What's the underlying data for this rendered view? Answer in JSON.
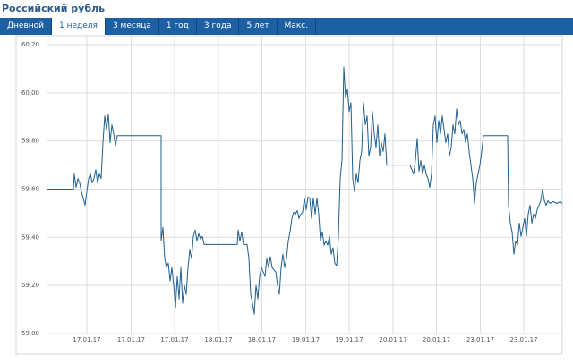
{
  "title": "Российский рубль",
  "tabs": [
    "Дневной",
    "1 неделя",
    "3 месяца",
    "1 год",
    "3 года",
    "5 лет",
    "Макс."
  ],
  "selected_tab": 1,
  "chart_data": {
    "type": "line",
    "grid": true,
    "xlim": [
      0,
      576
    ],
    "ylim": [
      59.0,
      60.2
    ],
    "xticks": [
      {
        "value": 45,
        "label": "17.01.17"
      },
      {
        "value": 94.5,
        "label": "17.01.17"
      },
      {
        "value": 143,
        "label": "17.01.17"
      },
      {
        "value": 192,
        "label": "18.01.17"
      },
      {
        "value": 240.5,
        "label": "18.01.17"
      },
      {
        "value": 289.5,
        "label": "19.01.17"
      },
      {
        "value": 338,
        "label": "19.01.17"
      },
      {
        "value": 387,
        "label": "20.01.17"
      },
      {
        "value": 435.5,
        "label": "20.01.17"
      },
      {
        "value": 484.5,
        "label": "23.01.17"
      },
      {
        "value": 533,
        "label": "23.01.17"
      }
    ],
    "yticks": [
      {
        "value": 60.2,
        "label": "60,20"
      },
      {
        "value": 60.0,
        "label": "60,00"
      },
      {
        "value": 59.8,
        "label": "59,80"
      },
      {
        "value": 59.6,
        "label": "59,60"
      },
      {
        "value": 59.4,
        "label": "59,40"
      },
      {
        "value": 59.2,
        "label": "59,20"
      },
      {
        "value": 59.0,
        "label": "59,00"
      }
    ],
    "x": [
      0,
      30,
      31,
      33,
      35,
      37,
      39,
      41,
      43,
      45,
      47,
      49,
      51,
      53,
      55,
      57,
      59,
      61,
      63,
      65,
      67,
      69,
      71,
      73,
      75,
      77,
      79,
      128,
      128,
      130,
      132,
      134,
      136,
      138,
      140,
      142,
      144,
      146,
      148,
      150,
      152,
      154,
      156,
      158,
      160,
      162,
      164,
      166,
      168,
      170,
      172,
      174,
      176,
      213,
      214,
      216,
      218,
      220,
      224,
      226,
      228,
      230,
      232,
      234,
      236,
      238,
      240,
      242,
      244,
      246,
      248,
      250,
      252,
      256,
      258,
      260,
      262,
      264,
      266,
      268,
      270,
      272,
      274,
      276,
      278,
      280,
      282,
      284,
      286,
      288,
      290,
      292,
      294,
      296,
      298,
      300,
      302,
      304,
      306,
      308,
      310,
      312,
      314,
      316,
      318,
      320,
      322,
      324,
      326,
      328,
      330,
      332,
      334,
      336,
      338,
      340,
      342,
      344,
      346,
      348,
      350,
      352,
      354,
      356,
      358,
      360,
      362,
      364,
      366,
      368,
      370,
      372,
      374,
      376,
      378,
      380,
      406,
      410,
      412,
      414,
      416,
      418,
      420,
      422,
      424,
      426,
      428,
      430,
      432,
      434,
      436,
      438,
      440,
      442,
      444,
      446,
      448,
      450,
      452,
      454,
      456,
      458,
      460,
      462,
      464,
      466,
      468,
      470,
      472,
      474,
      476,
      478,
      480,
      482,
      484,
      486,
      488,
      515,
      516,
      518,
      520,
      522,
      524,
      526,
      528,
      530,
      532,
      534,
      536,
      538,
      540,
      542,
      544,
      546,
      548,
      550,
      552,
      554,
      556,
      558,
      560,
      562,
      566,
      570,
      574,
      576
    ],
    "series": [
      {
        "color": "#1f5f8f",
        "values": [
          59.6,
          59.6,
          59.663,
          59.607,
          59.644,
          59.626,
          59.589,
          59.563,
          59.533,
          59.589,
          59.644,
          59.663,
          59.626,
          59.644,
          59.681,
          59.626,
          59.663,
          59.644,
          59.793,
          59.904,
          59.848,
          59.911,
          59.793,
          59.867,
          59.83,
          59.781,
          59.822,
          59.822,
          59.385,
          59.441,
          59.311,
          59.274,
          59.293,
          59.219,
          59.274,
          59.2,
          59.107,
          59.237,
          59.144,
          59.274,
          59.126,
          59.2,
          59.163,
          59.274,
          59.348,
          59.311,
          59.404,
          59.43,
          59.385,
          59.415,
          59.393,
          59.404,
          59.37,
          59.37,
          59.43,
          59.385,
          59.422,
          59.37,
          59.37,
          59.311,
          59.163,
          59.126,
          59.081,
          59.2,
          59.144,
          59.237,
          59.274,
          59.256,
          59.237,
          59.311,
          59.274,
          59.319,
          59.274,
          59.256,
          59.2,
          59.163,
          59.274,
          59.33,
          59.274,
          59.311,
          59.385,
          59.422,
          59.478,
          59.504,
          59.496,
          59.511,
          59.478,
          59.496,
          59.504,
          59.563,
          59.515,
          59.567,
          59.563,
          59.478,
          59.563,
          59.496,
          59.563,
          59.496,
          59.385,
          59.422,
          59.367,
          59.385,
          59.367,
          59.404,
          59.33,
          59.356,
          59.293,
          59.281,
          59.404,
          59.644,
          59.719,
          60.107,
          59.978,
          60.015,
          59.922,
          59.959,
          59.644,
          59.589,
          59.663,
          59.626,
          59.719,
          59.756,
          59.959,
          59.867,
          59.904,
          59.737,
          59.774,
          59.922,
          59.83,
          59.774,
          59.867,
          59.737,
          59.793,
          59.756,
          59.83,
          59.7,
          59.7,
          59.663,
          59.719,
          59.811,
          59.674,
          59.719,
          59.663,
          59.7,
          59.663,
          59.644,
          59.607,
          59.663,
          59.867,
          59.904,
          59.793,
          59.885,
          59.83,
          59.904,
          59.848,
          59.793,
          59.83,
          59.737,
          59.774,
          59.867,
          59.83,
          59.933,
          59.867,
          59.885,
          59.83,
          59.848,
          59.793,
          59.83,
          59.756,
          59.7,
          59.644,
          59.541,
          59.626,
          59.663,
          59.7,
          59.756,
          59.822,
          59.822,
          59.533,
          59.459,
          59.422,
          59.33,
          59.385,
          59.367,
          59.459,
          59.404,
          59.441,
          59.478,
          59.404,
          59.496,
          59.533,
          59.459,
          59.496,
          59.478,
          59.515,
          59.533,
          59.552,
          59.6,
          59.552,
          59.533,
          59.552,
          59.541,
          59.548,
          59.541,
          59.548,
          59.541
        ]
      }
    ]
  }
}
